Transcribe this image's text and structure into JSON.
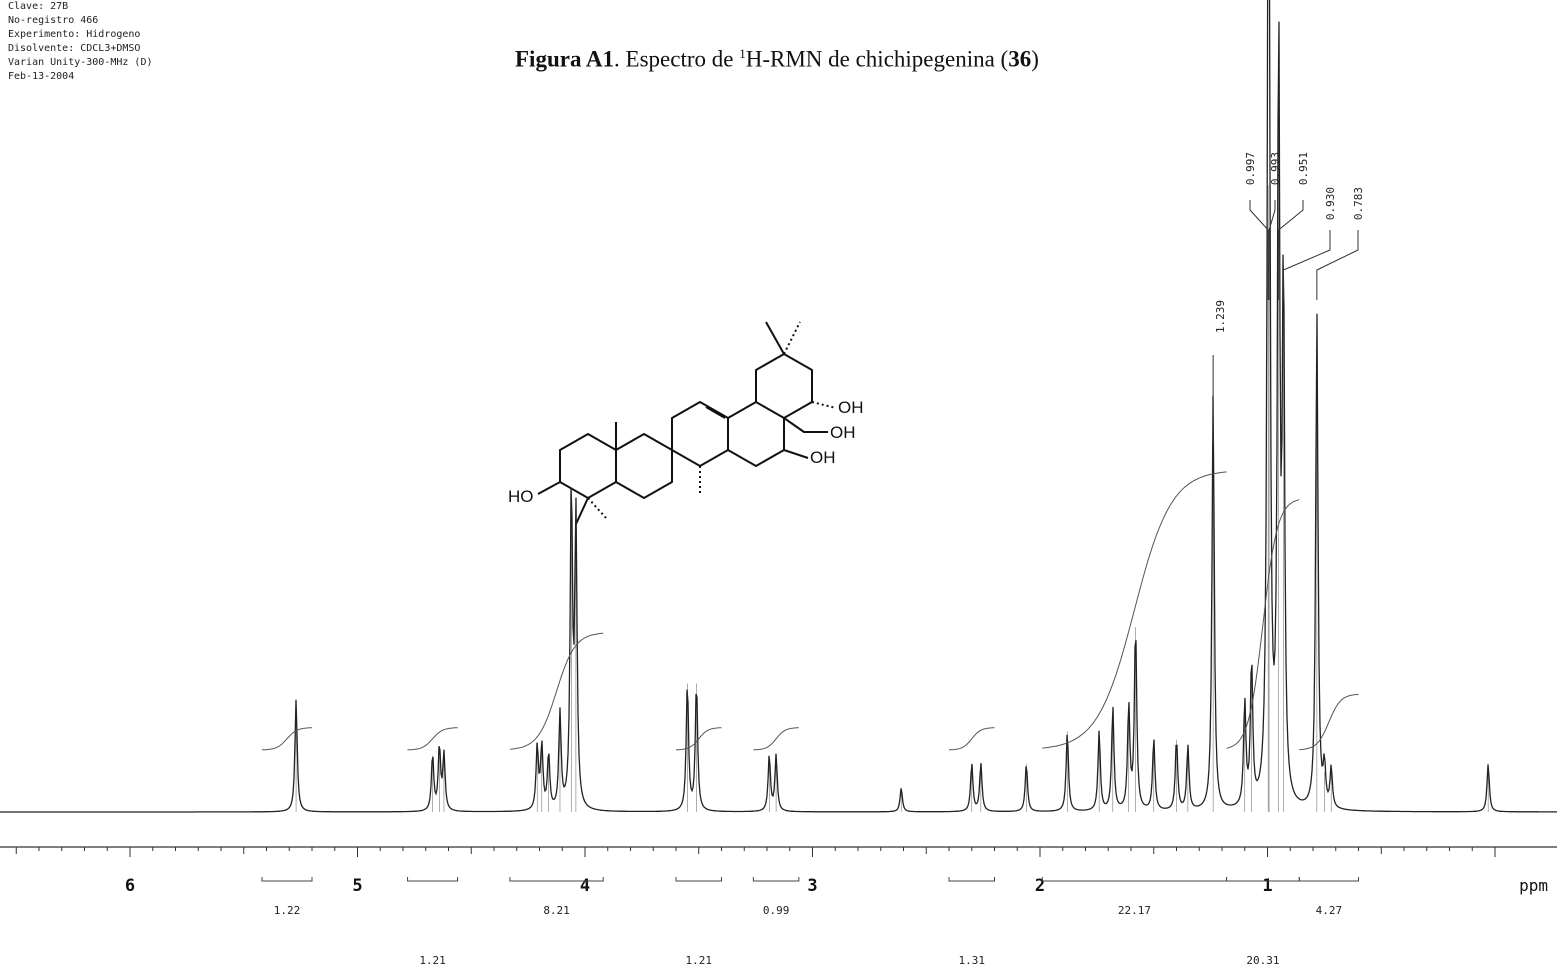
{
  "header": {
    "meta_lines": [
      "Clave: 27B",
      "No-registro 466",
      "Experimento: Hidrogeno",
      "Disolvente: CDCL3+DMSO",
      "Varian Unity-300-MHz (D)",
      "Feb-13-2004"
    ],
    "title_bold": "Figura A1",
    "title_rest": ". Espectro de ",
    "title_sup": "1",
    "title_main": "H-RMN de chichipegenina (",
    "title_compound": "36",
    "title_end": ")"
  },
  "structure": {
    "atom_labels": [
      "OH",
      "OH",
      "OH",
      "HO"
    ]
  },
  "chart_data": {
    "type": "line",
    "title": "",
    "xlabel": "ppm",
    "xlim": [
      6.5,
      0.0
    ],
    "x_reversed": true,
    "x_ticks": [
      6,
      5,
      4,
      3,
      2,
      1
    ],
    "peak_labels": [
      "0.997",
      "0.993",
      "0.951",
      "0.930",
      "0.783",
      "1.239"
    ],
    "peaks": [
      {
        "ppm": 5.27,
        "height": 0.14
      },
      {
        "ppm": 4.67,
        "height": 0.07
      },
      {
        "ppm": 4.64,
        "height": 0.08
      },
      {
        "ppm": 4.62,
        "height": 0.07
      },
      {
        "ppm": 4.21,
        "height": 0.08
      },
      {
        "ppm": 4.19,
        "height": 0.08
      },
      {
        "ppm": 4.16,
        "height": 0.07
      },
      {
        "ppm": 4.11,
        "height": 0.12
      },
      {
        "ppm": 4.06,
        "height": 0.4
      },
      {
        "ppm": 4.04,
        "height": 0.36
      },
      {
        "ppm": 3.55,
        "height": 0.16
      },
      {
        "ppm": 3.51,
        "height": 0.16
      },
      {
        "ppm": 3.19,
        "height": 0.07
      },
      {
        "ppm": 3.16,
        "height": 0.07
      },
      {
        "ppm": 2.61,
        "height": 0.03
      },
      {
        "ppm": 2.3,
        "height": 0.06
      },
      {
        "ppm": 2.26,
        "height": 0.06
      },
      {
        "ppm": 2.06,
        "height": 0.06
      },
      {
        "ppm": 1.88,
        "height": 0.1
      },
      {
        "ppm": 1.74,
        "height": 0.1
      },
      {
        "ppm": 1.68,
        "height": 0.13
      },
      {
        "ppm": 1.61,
        "height": 0.13
      },
      {
        "ppm": 1.58,
        "height": 0.23
      },
      {
        "ppm": 1.5,
        "height": 0.09
      },
      {
        "ppm": 1.4,
        "height": 0.09
      },
      {
        "ppm": 1.35,
        "height": 0.08
      },
      {
        "ppm": 1.239,
        "height": 0.52
      },
      {
        "ppm": 1.1,
        "height": 0.13
      },
      {
        "ppm": 1.07,
        "height": 0.18
      },
      {
        "ppm": 0.997,
        "height": 0.78
      },
      {
        "ppm": 0.993,
        "height": 0.7
      },
      {
        "ppm": 0.951,
        "height": 0.96
      },
      {
        "ppm": 0.93,
        "height": 0.65
      },
      {
        "ppm": 0.783,
        "height": 0.62
      },
      {
        "ppm": 0.75,
        "height": 0.05
      },
      {
        "ppm": 0.72,
        "height": 0.05
      },
      {
        "ppm": 0.03,
        "height": 0.06
      }
    ],
    "integrals": [
      {
        "from": 5.42,
        "to": 5.2,
        "value": "1.22",
        "row": 0,
        "rise": 0.04
      },
      {
        "from": 4.78,
        "to": 4.56,
        "value": "1.21",
        "row": 1,
        "rise": 0.04
      },
      {
        "from": 4.33,
        "to": 3.92,
        "value": "8.21",
        "row": 0,
        "rise": 0.21
      },
      {
        "from": 3.6,
        "to": 3.4,
        "value": "1.21",
        "row": 1,
        "rise": 0.04
      },
      {
        "from": 3.26,
        "to": 3.06,
        "value": "0.99",
        "row": 0,
        "rise": 0.04
      },
      {
        "from": 2.4,
        "to": 2.2,
        "value": "1.31",
        "row": 1,
        "rise": 0.04
      },
      {
        "from": 1.99,
        "to": 1.18,
        "value": "22.17",
        "row": 0,
        "rise": 0.5
      },
      {
        "from": 1.18,
        "to": 0.86,
        "value": "20.31",
        "row": 1,
        "rise": 0.45
      },
      {
        "from": 0.86,
        "to": 0.6,
        "value": "4.27",
        "row": 0,
        "rise": 0.1
      }
    ]
  }
}
